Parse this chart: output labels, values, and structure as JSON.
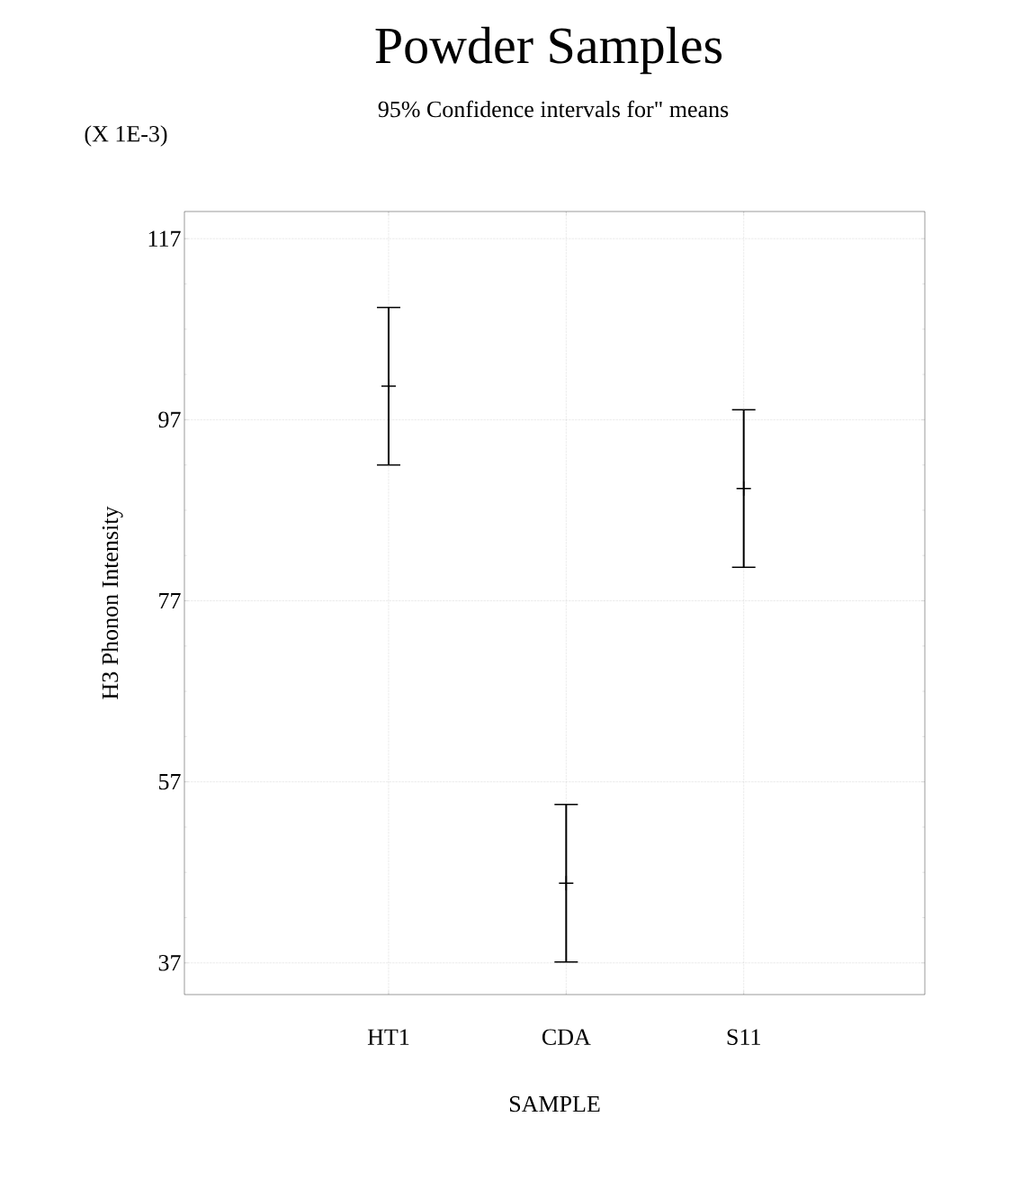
{
  "chart_data": {
    "type": "scatter",
    "title": "Powder Samples",
    "subtitle": "95% Confidence intervals for\" means",
    "xlabel": "SAMPLE",
    "ylabel": "H3 Phonon Intensity",
    "annotations": [
      "(X 1E-3)"
    ],
    "categories": [
      "HT1",
      "CDA",
      "S11"
    ],
    "values": [
      100.7,
      45.8,
      89.4
    ],
    "errors": [
      8.7,
      8.7,
      8.7
    ],
    "color": "#000000",
    "marker": "cross",
    "grid": true,
    "ylim": [
      33.5,
      120
    ],
    "yticks": [
      37,
      57,
      77,
      97,
      117
    ]
  }
}
